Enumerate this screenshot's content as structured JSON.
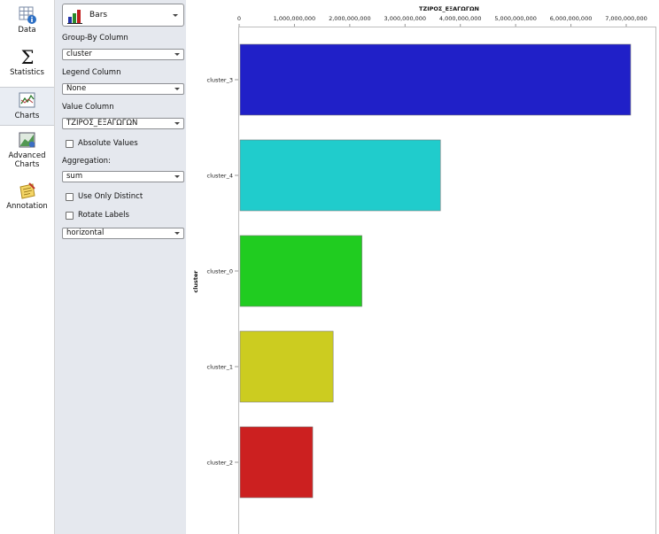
{
  "rail": {
    "items": [
      {
        "label": "Data",
        "icon": "data-table-icon"
      },
      {
        "label": "Statistics",
        "icon": "sigma-icon"
      },
      {
        "label": "Charts",
        "icon": "line-chart-icon"
      },
      {
        "label": "Advanced Charts",
        "icon": "advanced-chart-icon"
      },
      {
        "label": "Annotation",
        "icon": "note-pencil-icon"
      }
    ]
  },
  "panel": {
    "chart_type": "Bars",
    "group_by_label": "Group-By Column",
    "group_by_value": "cluster",
    "legend_label": "Legend Column",
    "legend_value": "None",
    "value_label": "Value Column",
    "value_value": "ΤΖΙΡΟΣ_ΕΞΑΓΩΓΩΝ",
    "absolute_values": "Absolute Values",
    "aggregation_label": "Aggregation:",
    "aggregation_value": "sum",
    "use_only_distinct": "Use Only Distinct",
    "rotate_labels": "Rotate Labels",
    "orientation_value": "horizontal"
  },
  "chart_data": {
    "type": "bar",
    "orientation": "horizontal",
    "title": "ΤΖΙΡΟΣ_ΕΞΑΓΩΓΩΝ",
    "ylabel": "cluster",
    "categories": [
      "cluster_3",
      "cluster_4",
      "cluster_0",
      "cluster_1",
      "cluster_2"
    ],
    "values": [
      7080000000,
      3640000000,
      2220000000,
      1700000000,
      1330000000
    ],
    "colors": [
      "#2020c8",
      "#20cccc",
      "#20cc20",
      "#cccc20",
      "#cc2020"
    ],
    "xlim": [
      0,
      7000000000
    ],
    "xticks": [
      "0",
      "1,000,000,000",
      "2,000,000,000",
      "3,000,000,000",
      "4,000,000,000",
      "5,000,000,000",
      "6,000,000,000",
      "7,000,000,000"
    ],
    "xtick_values": [
      0,
      1000000000,
      2000000000,
      3000000000,
      4000000000,
      5000000000,
      6000000000,
      7000000000
    ],
    "grid": false
  }
}
